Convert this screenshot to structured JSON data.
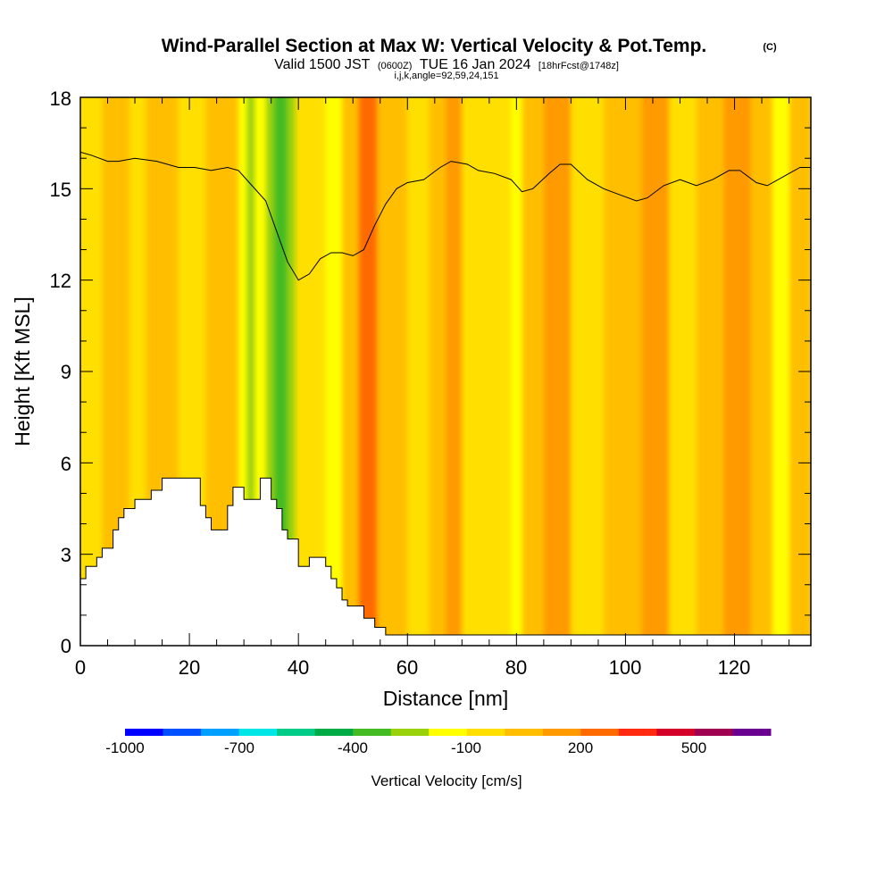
{
  "chart_data": {
    "type": "heatmap",
    "title": {
      "main": "Wind-Parallel Section at Max W: Vertical Velocity & Pot.Temp.",
      "copyright": "(C)",
      "valid_prefix": "Valid 1500 JST",
      "valid_z": "(0600Z)",
      "valid_date": "TUE 16 Jan 2024",
      "forecast": "[18hrFcst@1748z]",
      "params": "i,j,k,angle=92,59,24,151"
    },
    "xlabel": "Distance [nm]",
    "ylabel": "Height [Kft MSL]",
    "xlim": [
      0,
      134
    ],
    "ylim": [
      0,
      18
    ],
    "xticks": [
      "0",
      "20",
      "40",
      "60",
      "80",
      "100",
      "120"
    ],
    "yticks": [
      "0",
      "3",
      "6",
      "9",
      "12",
      "15",
      "18"
    ],
    "colorbar": {
      "label": "Vertical Velocity [cm/s]",
      "tick_labels": [
        "-1000",
        "-700",
        "-400",
        "-100",
        "200",
        "500"
      ],
      "tick_values": [
        -1000,
        -700,
        -400,
        -100,
        200,
        500
      ],
      "range": [
        -1000,
        700
      ],
      "step": 100,
      "colors": [
        "#0000ff",
        "#0050ff",
        "#00a0ff",
        "#00e6e6",
        "#00cc88",
        "#00aa44",
        "#44bb22",
        "#99d10a",
        "#ffff00",
        "#ffdf00",
        "#ffbf00",
        "#ff9a00",
        "#ff6a00",
        "#ff2a10",
        "#d5002a",
        "#a00050",
        "#6a0090"
      ]
    },
    "velocity_columns": [
      {
        "x": [
          0,
          4
        ],
        "level": "-100..0"
      },
      {
        "x": [
          4,
          9
        ],
        "level": "0..100"
      },
      {
        "x": [
          9,
          12
        ],
        "level": "-100..0"
      },
      {
        "x": [
          12,
          18
        ],
        "level": "0..100"
      },
      {
        "x": [
          18,
          20
        ],
        "level": "-100..0"
      },
      {
        "x": [
          20,
          23
        ],
        "level": "-100..0"
      },
      {
        "x": [
          23,
          26
        ],
        "level": "0..100"
      },
      {
        "x": [
          26,
          29
        ],
        "level": "0..100"
      },
      {
        "x": [
          29,
          30.5
        ],
        "level": "-200..-100"
      },
      {
        "x": [
          30.5,
          32
        ],
        "level": "-300..-200"
      },
      {
        "x": [
          32,
          34
        ],
        "level": "-200..-100"
      },
      {
        "x": [
          34,
          35.5
        ],
        "level": "-300..-200"
      },
      {
        "x": [
          35.5,
          38
        ],
        "level": "-400..-300"
      },
      {
        "x": [
          38,
          39.5
        ],
        "level": "-300..-200"
      },
      {
        "x": [
          39.5,
          42
        ],
        "level": "-100..0"
      },
      {
        "x": [
          42,
          45
        ],
        "level": "-100..0"
      },
      {
        "x": [
          45,
          48
        ],
        "level": "-200..-100"
      },
      {
        "x": [
          48,
          51
        ],
        "level": "0..100"
      },
      {
        "x": [
          51,
          54.5
        ],
        "level": "200..300"
      },
      {
        "x": [
          54.5,
          60
        ],
        "level": "0..100"
      },
      {
        "x": [
          60,
          64
        ],
        "level": "-100..0"
      },
      {
        "x": [
          64,
          67
        ],
        "level": "0..100"
      },
      {
        "x": [
          67,
          70
        ],
        "level": "100..200"
      },
      {
        "x": [
          70,
          79
        ],
        "level": "-100..0"
      },
      {
        "x": [
          79,
          81
        ],
        "level": "-200..-100"
      },
      {
        "x": [
          81,
          85
        ],
        "level": "0..100"
      },
      {
        "x": [
          85,
          90
        ],
        "level": "100..200"
      },
      {
        "x": [
          90,
          96
        ],
        "level": "-100..0"
      },
      {
        "x": [
          96,
          103
        ],
        "level": "0..100"
      },
      {
        "x": [
          103,
          108
        ],
        "level": "100..200"
      },
      {
        "x": [
          108,
          113
        ],
        "level": "-100..0"
      },
      {
        "x": [
          113,
          118
        ],
        "level": "0..100"
      },
      {
        "x": [
          118,
          123
        ],
        "level": "100..200"
      },
      {
        "x": [
          123,
          127
        ],
        "level": "0..100"
      },
      {
        "x": [
          127,
          130
        ],
        "level": "-200..-100"
      },
      {
        "x": [
          130,
          134
        ],
        "level": "0..100"
      }
    ],
    "terrain_kft": [
      {
        "x": 0,
        "y": 2.2
      },
      {
        "x": 1,
        "y": 2.6
      },
      {
        "x": 3,
        "y": 2.9
      },
      {
        "x": 4,
        "y": 3.2
      },
      {
        "x": 6,
        "y": 3.8
      },
      {
        "x": 7,
        "y": 4.2
      },
      {
        "x": 8,
        "y": 4.5
      },
      {
        "x": 10,
        "y": 4.8
      },
      {
        "x": 13,
        "y": 5.1
      },
      {
        "x": 15,
        "y": 5.5
      },
      {
        "x": 21,
        "y": 5.5
      },
      {
        "x": 22,
        "y": 4.6
      },
      {
        "x": 23,
        "y": 4.2
      },
      {
        "x": 24,
        "y": 3.8
      },
      {
        "x": 27,
        "y": 4.6
      },
      {
        "x": 28,
        "y": 5.2
      },
      {
        "x": 30,
        "y": 4.8
      },
      {
        "x": 33,
        "y": 5.5
      },
      {
        "x": 35,
        "y": 4.8
      },
      {
        "x": 36,
        "y": 4.5
      },
      {
        "x": 37,
        "y": 3.8
      },
      {
        "x": 38,
        "y": 3.5
      },
      {
        "x": 40,
        "y": 2.6
      },
      {
        "x": 42,
        "y": 2.9
      },
      {
        "x": 45,
        "y": 2.6
      },
      {
        "x": 46,
        "y": 2.2
      },
      {
        "x": 47,
        "y": 1.9
      },
      {
        "x": 48,
        "y": 1.5
      },
      {
        "x": 49,
        "y": 1.3
      },
      {
        "x": 52,
        "y": 0.9
      },
      {
        "x": 54,
        "y": 0.6
      },
      {
        "x": 56,
        "y": 0.35
      },
      {
        "x": 134,
        "y": 0.35
      }
    ],
    "theta_contour_kft": [
      {
        "x": 0,
        "y": 16.2
      },
      {
        "x": 2,
        "y": 16.1
      },
      {
        "x": 5,
        "y": 15.9
      },
      {
        "x": 7,
        "y": 15.9
      },
      {
        "x": 10,
        "y": 16.0
      },
      {
        "x": 14,
        "y": 15.9
      },
      {
        "x": 18,
        "y": 15.7
      },
      {
        "x": 21,
        "y": 15.7
      },
      {
        "x": 24,
        "y": 15.6
      },
      {
        "x": 27,
        "y": 15.7
      },
      {
        "x": 29,
        "y": 15.6
      },
      {
        "x": 31,
        "y": 15.2
      },
      {
        "x": 34,
        "y": 14.6
      },
      {
        "x": 36,
        "y": 13.6
      },
      {
        "x": 38,
        "y": 12.6
      },
      {
        "x": 40,
        "y": 12.0
      },
      {
        "x": 42,
        "y": 12.2
      },
      {
        "x": 44,
        "y": 12.7
      },
      {
        "x": 46,
        "y": 12.9
      },
      {
        "x": 48,
        "y": 12.9
      },
      {
        "x": 50,
        "y": 12.8
      },
      {
        "x": 52,
        "y": 13.0
      },
      {
        "x": 54,
        "y": 13.8
      },
      {
        "x": 56,
        "y": 14.5
      },
      {
        "x": 58,
        "y": 15.0
      },
      {
        "x": 60,
        "y": 15.2
      },
      {
        "x": 63,
        "y": 15.3
      },
      {
        "x": 66,
        "y": 15.7
      },
      {
        "x": 68,
        "y": 15.9
      },
      {
        "x": 71,
        "y": 15.8
      },
      {
        "x": 73,
        "y": 15.6
      },
      {
        "x": 76,
        "y": 15.5
      },
      {
        "x": 79,
        "y": 15.3
      },
      {
        "x": 81,
        "y": 14.9
      },
      {
        "x": 83,
        "y": 15.0
      },
      {
        "x": 86,
        "y": 15.5
      },
      {
        "x": 88,
        "y": 15.8
      },
      {
        "x": 90,
        "y": 15.8
      },
      {
        "x": 93,
        "y": 15.3
      },
      {
        "x": 96,
        "y": 15.0
      },
      {
        "x": 99,
        "y": 14.8
      },
      {
        "x": 102,
        "y": 14.6
      },
      {
        "x": 104,
        "y": 14.7
      },
      {
        "x": 107,
        "y": 15.1
      },
      {
        "x": 110,
        "y": 15.3
      },
      {
        "x": 113,
        "y": 15.1
      },
      {
        "x": 116,
        "y": 15.3
      },
      {
        "x": 119,
        "y": 15.6
      },
      {
        "x": 121,
        "y": 15.6
      },
      {
        "x": 124,
        "y": 15.2
      },
      {
        "x": 126,
        "y": 15.1
      },
      {
        "x": 129,
        "y": 15.4
      },
      {
        "x": 132,
        "y": 15.7
      },
      {
        "x": 134,
        "y": 15.7
      }
    ]
  }
}
